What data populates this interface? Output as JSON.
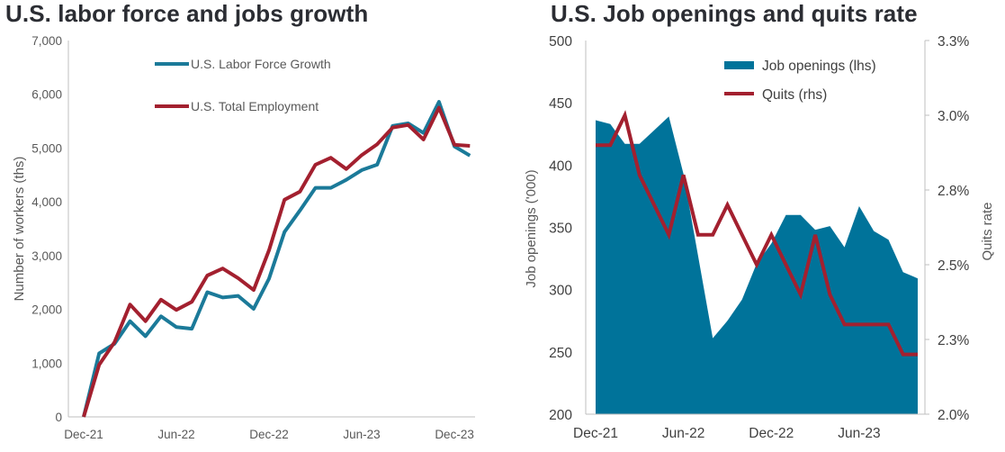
{
  "colors": {
    "labor": "#1b7a99",
    "employment": "#a3202f",
    "openings": "#00739a",
    "quits": "#a3202f",
    "axis": "#bfbfbf"
  },
  "chart_data": [
    {
      "type": "line",
      "title": "U.S. labor force and jobs growth",
      "xlabel": "",
      "ylabel": "Number  of workers (ths)",
      "ylim": [
        0,
        7000
      ],
      "yticks": [
        "0",
        "1,000",
        "2,000",
        "3,000",
        "4,000",
        "5,000",
        "6,000",
        "7,000"
      ],
      "xticks": [
        "Dec-21",
        "Jun-22",
        "Dec-22",
        "Jun-23",
        "Dec-23"
      ],
      "x_months_from_dec21": [
        0,
        1,
        2,
        3,
        4,
        5,
        6,
        7,
        8,
        9,
        10,
        11,
        12,
        13,
        14,
        15,
        16,
        17,
        18,
        19,
        20,
        21,
        22,
        23,
        24,
        25
      ],
      "legend_position": "top-left",
      "series": [
        {
          "name": "U.S. Labor Force Growth",
          "color": "#1b7a99",
          "values": [
            0,
            1180,
            1360,
            1780,
            1500,
            1870,
            1670,
            1640,
            2320,
            2220,
            2250,
            2010,
            2570,
            3440,
            3840,
            4260,
            4260,
            4410,
            4590,
            4690,
            5410,
            5460,
            5280,
            5860,
            5030,
            4860
          ]
        },
        {
          "name": "U.S. Total Employment",
          "color": "#a3202f",
          "values": [
            0,
            970,
            1390,
            2090,
            1780,
            2180,
            1990,
            2140,
            2630,
            2760,
            2580,
            2360,
            3100,
            4040,
            4190,
            4690,
            4820,
            4610,
            4870,
            5070,
            5380,
            5430,
            5160,
            5750,
            5060,
            5040
          ]
        }
      ]
    },
    {
      "type": "area",
      "title": "U.S. Job openings and quits rate",
      "xlabel": "",
      "ylabel": "Job openings ('000)",
      "ylabel_right": "Quits rate",
      "ylim": [
        200,
        500
      ],
      "ylim_right": [
        2.0,
        3.25
      ],
      "yticks": [
        "200",
        "250",
        "300",
        "350",
        "400",
        "450",
        "500"
      ],
      "yticks_right": [
        "2.0%",
        "2.3%",
        "2.5%",
        "2.8%",
        "3.0%",
        "3.3%"
      ],
      "xticks": [
        "Dec-21",
        "Jun-22",
        "Dec-22",
        "Jun-23"
      ],
      "legend_position": "top-right",
      "series": [
        {
          "name": "Job openings (lhs)",
          "kind": "area",
          "axis": "left",
          "color": "#00739a",
          "values": [
            436,
            433,
            417,
            417,
            428,
            439,
            393,
            327,
            261,
            275,
            292,
            321,
            337,
            360,
            360,
            348,
            351,
            334,
            367,
            347,
            340,
            314,
            309
          ]
        },
        {
          "name": "Quits (rhs)",
          "kind": "line",
          "axis": "right",
          "color": "#a3202f",
          "values": [
            2.9,
            2.9,
            3.0,
            2.8,
            2.7,
            2.6,
            2.8,
            2.6,
            2.6,
            2.7,
            2.6,
            2.5,
            2.6,
            2.5,
            2.4,
            2.6,
            2.4,
            2.3,
            2.3,
            2.3,
            2.3,
            2.2,
            2.2
          ]
        }
      ]
    }
  ]
}
